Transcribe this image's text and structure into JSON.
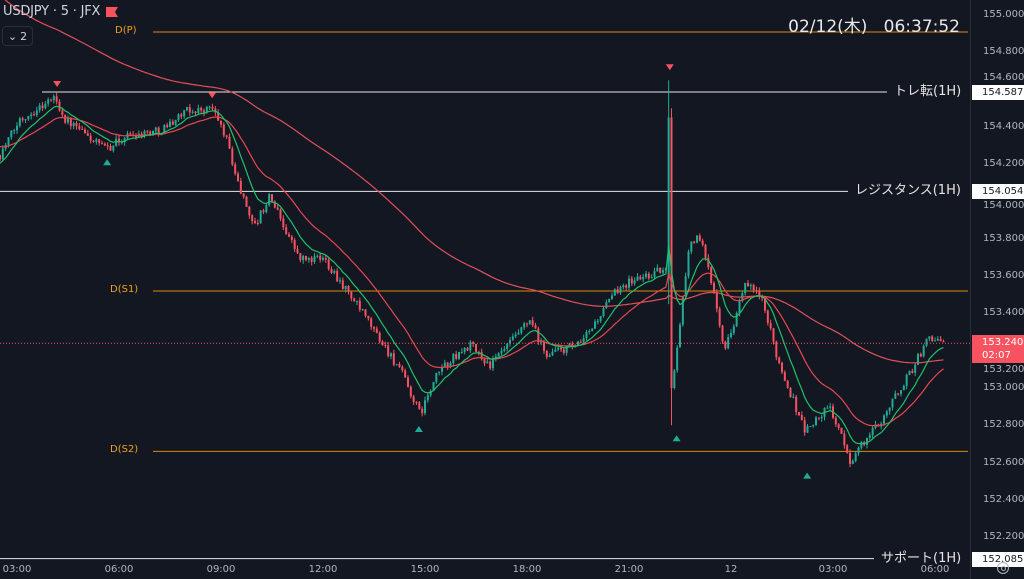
{
  "header": {
    "symbol": "USDJPY · 5 · JFX",
    "collapse_count": "2",
    "datetime": "02/12(木)   06:37:52"
  },
  "colors": {
    "background": "#131722",
    "up": "#22ab94",
    "down": "#f7525f",
    "ema_fast": "#1fc26b",
    "ema_mid": "#e8474f",
    "ema_slow": "#e0505a",
    "pivot": "#d98a0c",
    "hline": "#e6e6e6"
  },
  "price_axis": {
    "ticks": [
      "155.000",
      "154.800",
      "154.600",
      "154.400",
      "154.200",
      "154.000",
      "153.800",
      "153.600",
      "153.400",
      "153.200",
      "153.000",
      "152.800",
      "152.600",
      "152.400",
      "152.200"
    ],
    "last_price": "153.240",
    "countdown": "02:07"
  },
  "time_axis": {
    "labels": [
      "03:00",
      "06:00",
      "09:00",
      "12:00",
      "15:00",
      "18:00",
      "21:00",
      "12",
      "03:00",
      "06:00"
    ]
  },
  "levels": {
    "pivots": [
      {
        "label": "D(P)",
        "price": 154.909
      },
      {
        "label": "D(S1)",
        "price": 153.52
      },
      {
        "label": "D(S2)",
        "price": 152.66
      }
    ],
    "lines": [
      {
        "label": "トレ転(1H)",
        "price": 154.587,
        "tag": "154.587"
      },
      {
        "label": "レジスタンス(1H)",
        "price": 154.054,
        "tag": "154.054"
      },
      {
        "label": "サポート(1H)",
        "price": 152.085,
        "tag": "152.085"
      }
    ]
  },
  "chart_data": {
    "type": "candlestick",
    "title": "USDJPY · 5 · JFX",
    "x_unit": "hours since first 03:00 label",
    "bars_per_hour": 12,
    "ylim": [
      152.1,
      155.1
    ],
    "waypoints": [
      [
        -0.5,
        154.25
      ],
      [
        0.09,
        154.44
      ],
      [
        1.12,
        154.56
      ],
      [
        1.41,
        154.44
      ],
      [
        2.59,
        154.28
      ],
      [
        3.32,
        154.36
      ],
      [
        4.21,
        154.38
      ],
      [
        4.94,
        154.48
      ],
      [
        5.74,
        154.5
      ],
      [
        6.12,
        154.36
      ],
      [
        6.56,
        154.06
      ],
      [
        7.0,
        153.87
      ],
      [
        7.44,
        154.03
      ],
      [
        8.32,
        153.69
      ],
      [
        9.06,
        153.69
      ],
      [
        10.09,
        153.42
      ],
      [
        11.26,
        153.1
      ],
      [
        11.85,
        152.86
      ],
      [
        12.44,
        153.1
      ],
      [
        13.32,
        153.23
      ],
      [
        13.91,
        153.12
      ],
      [
        15.09,
        153.36
      ],
      [
        15.53,
        153.18
      ],
      [
        16.56,
        153.23
      ],
      [
        17.74,
        153.55
      ],
      [
        18.91,
        153.63
      ],
      [
        19.15,
        153.62
      ],
      [
        19.26,
        153.0
      ],
      [
        19.79,
        153.79
      ],
      [
        20.09,
        153.8
      ],
      [
        20.53,
        153.5
      ],
      [
        20.82,
        153.2
      ],
      [
        21.41,
        153.55
      ],
      [
        21.85,
        153.5
      ],
      [
        22.44,
        153.12
      ],
      [
        23.18,
        152.77
      ],
      [
        23.91,
        152.9
      ],
      [
        24.5,
        152.61
      ],
      [
        25.38,
        152.82
      ],
      [
        26.26,
        153.08
      ],
      [
        26.85,
        153.28
      ],
      [
        27.29,
        153.24
      ]
    ],
    "special_bars": [
      {
        "h": 19.2,
        "o": 153.6,
        "h_price": 154.65,
        "l": 153.45,
        "c": 154.45
      },
      {
        "h": 19.28,
        "o": 154.45,
        "h_price": 154.5,
        "l": 152.8,
        "c": 153.0
      }
    ],
    "ema_seeds": {
      "fast": 154.2,
      "mid": 154.3,
      "slow": 155.12
    },
    "ema_periods": {
      "fast": 10,
      "mid": 25,
      "slow": 120
    },
    "markers": [
      {
        "type": "sell",
        "h": 1.18,
        "price": 154.56
      },
      {
        "type": "sell",
        "h": 5.74,
        "price": 154.5
      },
      {
        "type": "sell",
        "h": 19.2,
        "price": 154.65
      },
      {
        "type": "buy",
        "h": 2.65,
        "price": 154.28
      },
      {
        "type": "buy",
        "h": 11.82,
        "price": 152.85
      },
      {
        "type": "buy",
        "h": 19.4,
        "price": 152.8
      },
      {
        "type": "buy",
        "h": 23.24,
        "price": 152.6
      }
    ]
  }
}
